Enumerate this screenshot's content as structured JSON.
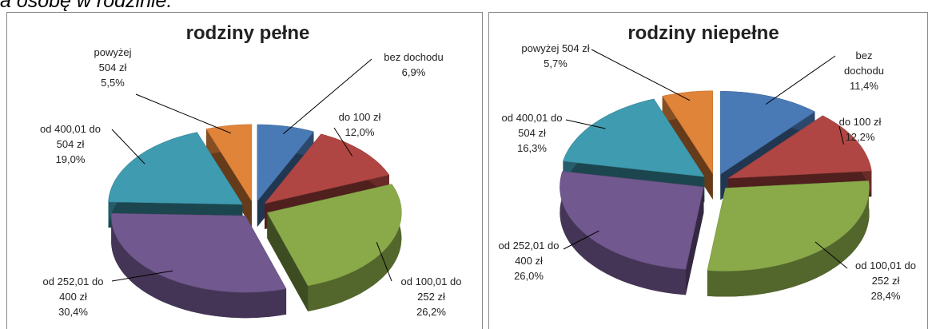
{
  "header": {
    "text": "a osobę w rodzinie."
  },
  "chart_data": [
    {
      "type": "pie",
      "title": "rodziny pełne",
      "categories": [
        "bez dochodu",
        "do 100 zł",
        "od 100,01 do 252 zł",
        "od 252,01 do 400 zł",
        "od 400,01 do 504 zł",
        "powyżej 504 zł"
      ],
      "values": [
        6.9,
        12.0,
        26.2,
        30.4,
        19.0,
        5.5
      ],
      "value_labels": [
        "6,9%",
        "12,0%",
        "26,2%",
        "30,4%",
        "19,0%",
        "5,5%"
      ],
      "colors": [
        "#4a7ab5",
        "#b04643",
        "#8aaa4a",
        "#71588f",
        "#3f9bb0",
        "#e0843a"
      ]
    },
    {
      "type": "pie",
      "title": "rodziny niepełne",
      "categories": [
        "bez dochodu",
        "do 100 zł",
        "od 100,01 do 252 zł",
        "od 252,01 do 400 zł",
        "od 400,01 do 504 zł",
        "powyżej 504 zł"
      ],
      "values": [
        11.4,
        12.2,
        28.4,
        26.0,
        16.3,
        5.7
      ],
      "value_labels": [
        "11,4%",
        "12,2%",
        "28,4%",
        "26,0%",
        "16,3%",
        "5,7%"
      ],
      "colors": [
        "#4a7ab5",
        "#b04643",
        "#8aaa4a",
        "#71588f",
        "#3f9bb0",
        "#e0843a"
      ]
    }
  ]
}
